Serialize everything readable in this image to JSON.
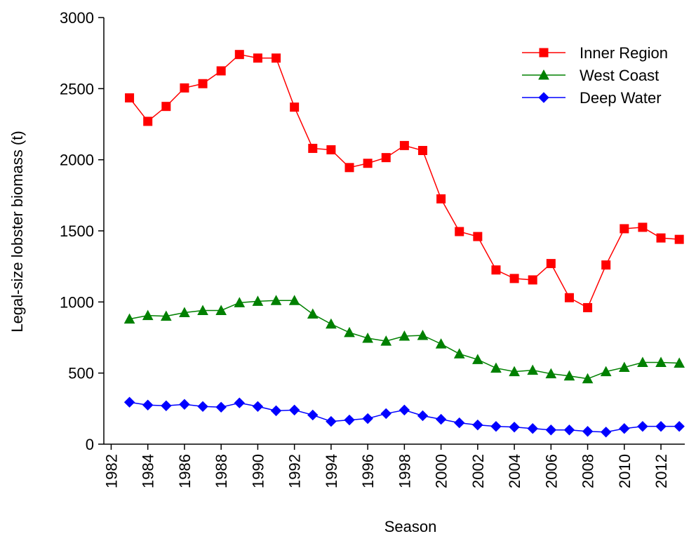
{
  "chart_data": {
    "type": "line",
    "x_label": "Season",
    "y_label": "Legal-size lobster biomass (t)",
    "x": [
      1983,
      1984,
      1985,
      1986,
      1987,
      1988,
      1989,
      1990,
      1991,
      1992,
      1993,
      1994,
      1995,
      1996,
      1997,
      1998,
      1999,
      2000,
      2001,
      2002,
      2003,
      2004,
      2005,
      2006,
      2007,
      2008,
      2009,
      2010,
      2011,
      2012,
      2013
    ],
    "series": [
      {
        "name": "Inner Region",
        "color": "#ff0000",
        "marker": "square",
        "values": [
          2435,
          2270,
          2375,
          2505,
          2535,
          2625,
          2740,
          2715,
          2715,
          2370,
          2080,
          2070,
          1945,
          1975,
          2015,
          2100,
          2065,
          1725,
          1495,
          1460,
          1225,
          1165,
          1155,
          1270,
          1030,
          960,
          1260,
          1515,
          1525,
          1450,
          1440
        ]
      },
      {
        "name": "West Coast",
        "color": "#008000",
        "marker": "triangle",
        "values": [
          880,
          905,
          900,
          925,
          940,
          940,
          995,
          1005,
          1010,
          1010,
          915,
          845,
          785,
          745,
          725,
          760,
          765,
          705,
          635,
          595,
          535,
          510,
          520,
          495,
          480,
          460,
          510,
          540,
          575,
          575,
          570
        ]
      },
      {
        "name": "Deep Water",
        "color": "#0000ff",
        "marker": "diamond",
        "values": [
          295,
          275,
          270,
          280,
          265,
          260,
          290,
          265,
          235,
          240,
          205,
          160,
          170,
          180,
          215,
          240,
          200,
          175,
          150,
          135,
          125,
          120,
          110,
          100,
          100,
          90,
          85,
          110,
          125,
          125,
          125
        ]
      }
    ],
    "xlim": [
      1981.6,
      2013.3
    ],
    "xticks": [
      1982,
      1984,
      1986,
      1988,
      1990,
      1992,
      1994,
      1996,
      1998,
      2000,
      2002,
      2004,
      2006,
      2008,
      2010,
      2012
    ],
    "ylim": [
      0,
      3000
    ],
    "yticks": [
      0,
      500,
      1000,
      1500,
      2000,
      2500,
      3000
    ],
    "legend": "top-right"
  }
}
